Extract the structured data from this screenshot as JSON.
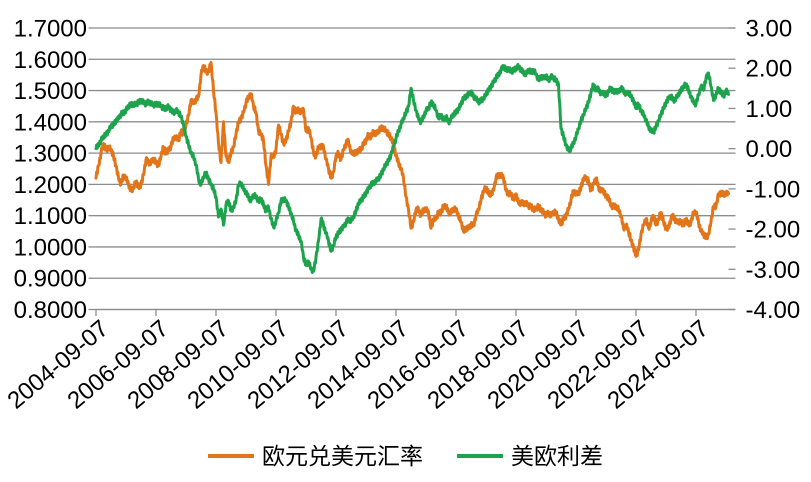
{
  "figure": {
    "background": "#FFFFFF",
    "grid_color": "#8C8C8C",
    "axis_color": "#8C8C8C",
    "text_color": "#000000"
  },
  "legend": {
    "items": [
      {
        "label": "欧元兑美元汇率",
        "color": "#E2751A"
      },
      {
        "label": "美欧利差",
        "color": "#1EA34D"
      }
    ]
  },
  "chart_data": {
    "type": "line",
    "title": "",
    "grid": "horizontal",
    "legend_position": "bottom",
    "x_start": "2004-09",
    "x_step": "1 month",
    "x_tick_labels": [
      "2004-09-07",
      "2006-09-07",
      "2008-09-07",
      "2010-09-07",
      "2012-09-07",
      "2014-09-07",
      "2016-09-07",
      "2018-09-07",
      "2020-09-07",
      "2022-09-07",
      "2024-09-07"
    ],
    "left_axis": {
      "min": 0.8,
      "max": 1.7,
      "tick_step": 0.1,
      "tick_labels": [
        "1.7000",
        "1.6000",
        "1.5000",
        "1.4000",
        "1.3000",
        "1.2000",
        "1.1000",
        "1.0000",
        "0.9000",
        "0.8000"
      ]
    },
    "right_axis": {
      "min": -4.0,
      "max": 3.0,
      "tick_step": 1.0,
      "tick_labels": [
        "3.00",
        "2.00",
        "1.00",
        "0.00",
        "-1.00",
        "-2.00",
        "-3.00",
        "-4.00"
      ]
    },
    "series": [
      {
        "name": "欧元兑美元汇率",
        "axis": "left",
        "color": "#E2751A",
        "values": [
          1.22,
          1.26,
          1.3,
          1.33,
          1.31,
          1.32,
          1.31,
          1.29,
          1.26,
          1.22,
          1.2,
          1.23,
          1.22,
          1.2,
          1.18,
          1.19,
          1.21,
          1.19,
          1.2,
          1.23,
          1.28,
          1.27,
          1.27,
          1.28,
          1.27,
          1.26,
          1.29,
          1.32,
          1.3,
          1.31,
          1.32,
          1.35,
          1.35,
          1.34,
          1.37,
          1.36,
          1.39,
          1.42,
          1.47,
          1.46,
          1.47,
          1.48,
          1.55,
          1.58,
          1.56,
          1.56,
          1.59,
          1.5,
          1.43,
          1.33,
          1.27,
          1.4,
          1.29,
          1.27,
          1.3,
          1.32,
          1.36,
          1.4,
          1.41,
          1.43,
          1.46,
          1.48,
          1.49,
          1.45,
          1.43,
          1.37,
          1.36,
          1.34,
          1.26,
          1.2,
          1.29,
          1.29,
          1.31,
          1.39,
          1.36,
          1.33,
          1.34,
          1.37,
          1.4,
          1.45,
          1.43,
          1.44,
          1.43,
          1.44,
          1.37,
          1.38,
          1.35,
          1.3,
          1.29,
          1.32,
          1.32,
          1.32,
          1.28,
          1.25,
          1.22,
          1.24,
          1.29,
          1.3,
          1.28,
          1.31,
          1.33,
          1.34,
          1.3,
          1.3,
          1.3,
          1.31,
          1.31,
          1.33,
          1.34,
          1.36,
          1.35,
          1.37,
          1.36,
          1.37,
          1.38,
          1.38,
          1.37,
          1.36,
          1.35,
          1.33,
          1.29,
          1.27,
          1.25,
          1.22,
          1.16,
          1.12,
          1.06,
          1.08,
          1.12,
          1.12,
          1.1,
          1.12,
          1.12,
          1.11,
          1.06,
          1.09,
          1.09,
          1.11,
          1.11,
          1.13,
          1.13,
          1.11,
          1.11,
          1.12,
          1.12,
          1.1,
          1.08,
          1.05,
          1.06,
          1.06,
          1.07,
          1.07,
          1.1,
          1.12,
          1.15,
          1.18,
          1.19,
          1.17,
          1.17,
          1.18,
          1.22,
          1.23,
          1.23,
          1.22,
          1.18,
          1.17,
          1.17,
          1.15,
          1.17,
          1.14,
          1.14,
          1.14,
          1.14,
          1.13,
          1.13,
          1.12,
          1.12,
          1.13,
          1.12,
          1.11,
          1.1,
          1.11,
          1.1,
          1.11,
          1.11,
          1.09,
          1.07,
          1.09,
          1.1,
          1.12,
          1.15,
          1.18,
          1.17,
          1.17,
          1.19,
          1.22,
          1.22,
          1.21,
          1.18,
          1.2,
          1.22,
          1.19,
          1.18,
          1.18,
          1.16,
          1.16,
          1.13,
          1.13,
          1.13,
          1.12,
          1.1,
          1.06,
          1.07,
          1.05,
          1.02,
          1.0,
          0.97,
          0.99,
          1.04,
          1.07,
          1.09,
          1.06,
          1.08,
          1.1,
          1.07,
          1.09,
          1.11,
          1.08,
          1.06,
          1.06,
          1.09,
          1.1,
          1.08,
          1.08,
          1.08,
          1.07,
          1.09,
          1.07,
          1.08,
          1.11,
          1.11,
          1.08,
          1.05,
          1.04,
          1.03,
          1.04,
          1.08,
          1.13,
          1.13,
          1.17,
          1.17,
          1.17,
          1.17,
          1.17
        ]
      },
      {
        "name": "美欧利差",
        "axis": "right",
        "color": "#1EA34D",
        "values": [
          0.0,
          0.1,
          0.2,
          0.3,
          0.35,
          0.45,
          0.55,
          0.6,
          0.7,
          0.75,
          0.85,
          0.9,
          0.95,
          1.05,
          1.1,
          1.1,
          1.1,
          1.15,
          1.2,
          1.15,
          1.1,
          1.18,
          1.12,
          1.08,
          1.1,
          1.12,
          1.05,
          1.0,
          1.0,
          1.05,
          0.95,
          0.9,
          0.95,
          0.9,
          0.8,
          0.6,
          0.3,
          0.1,
          -0.1,
          -0.2,
          -0.4,
          -0.75,
          -0.9,
          -0.7,
          -0.6,
          -0.75,
          -0.9,
          -1.0,
          -1.2,
          -1.7,
          -1.5,
          -1.9,
          -1.4,
          -1.3,
          -1.55,
          -1.45,
          -1.3,
          -0.9,
          -0.85,
          -1.0,
          -1.1,
          -1.2,
          -1.3,
          -1.15,
          -1.2,
          -1.3,
          -1.25,
          -1.4,
          -1.55,
          -1.45,
          -1.75,
          -1.95,
          -1.8,
          -1.6,
          -1.3,
          -1.25,
          -1.3,
          -1.45,
          -1.6,
          -1.8,
          -2.05,
          -2.15,
          -2.3,
          -2.7,
          -2.9,
          -2.8,
          -3.0,
          -3.05,
          -2.7,
          -2.3,
          -1.75,
          -1.9,
          -2.1,
          -2.3,
          -2.55,
          -2.4,
          -2.2,
          -2.1,
          -2.0,
          -1.95,
          -1.85,
          -1.75,
          -1.8,
          -1.7,
          -1.55,
          -1.35,
          -1.3,
          -1.2,
          -1.1,
          -1.0,
          -0.9,
          -0.85,
          -0.8,
          -0.75,
          -0.65,
          -0.5,
          -0.4,
          -0.3,
          -0.15,
          0.05,
          0.25,
          0.45,
          0.6,
          0.75,
          0.9,
          1.05,
          1.5,
          1.2,
          0.95,
          0.75,
          0.65,
          0.8,
          0.95,
          1.0,
          1.15,
          1.1,
          0.95,
          0.75,
          0.85,
          0.7,
          0.8,
          0.65,
          0.75,
          0.85,
          0.9,
          1.0,
          1.1,
          1.25,
          1.3,
          1.35,
          1.4,
          1.3,
          1.25,
          1.15,
          1.2,
          1.25,
          1.35,
          1.45,
          1.55,
          1.65,
          1.75,
          1.85,
          1.95,
          2.05,
          1.95,
          2.0,
          1.9,
          1.95,
          2.0,
          2.05,
          1.95,
          1.9,
          1.85,
          1.95,
          1.9,
          1.95,
          1.85,
          1.7,
          1.8,
          1.75,
          1.8,
          1.7,
          1.8,
          1.75,
          1.7,
          1.6,
          0.5,
          0.3,
          0.1,
          -0.05,
          0.0,
          0.15,
          0.3,
          0.5,
          0.7,
          0.85,
          1.0,
          1.15,
          1.4,
          1.6,
          1.45,
          1.5,
          1.35,
          1.4,
          1.3,
          1.45,
          1.5,
          1.4,
          1.45,
          1.4,
          1.5,
          1.45,
          1.35,
          1.4,
          1.3,
          1.2,
          1.0,
          1.1,
          0.95,
          0.85,
          0.7,
          0.55,
          0.45,
          0.4,
          0.55,
          0.7,
          0.85,
          1.0,
          1.15,
          1.25,
          1.3,
          1.2,
          1.25,
          1.35,
          1.45,
          1.55,
          1.6,
          1.45,
          1.3,
          1.15,
          1.1,
          1.35,
          1.55,
          1.45,
          1.75,
          1.88,
          1.55,
          1.2,
          1.35,
          1.5,
          1.4,
          1.3,
          1.45,
          1.35
        ]
      }
    ]
  }
}
